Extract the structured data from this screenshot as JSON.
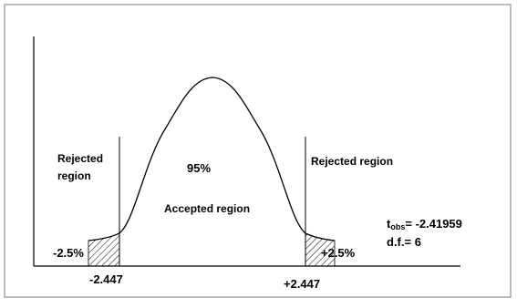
{
  "labels": {
    "rejected_left_line1": "Rejected",
    "rejected_left_line2": "region",
    "rejected_right": "Rejected region",
    "percent_center": "95%",
    "accepted_region": "Accepted region",
    "tail_left_percent": "-2.5%",
    "tail_right_percent": "+2.5%",
    "critical_left": "-2.447",
    "critical_right": "+2.447",
    "t_obs_symbol": "t",
    "t_obs_subscript": "obs",
    "t_obs_value": "= -2.41959",
    "df": "d.f.= 6"
  },
  "colors": {
    "frame": "#a6a6a6",
    "line": "#000000",
    "text": "#000000"
  }
}
